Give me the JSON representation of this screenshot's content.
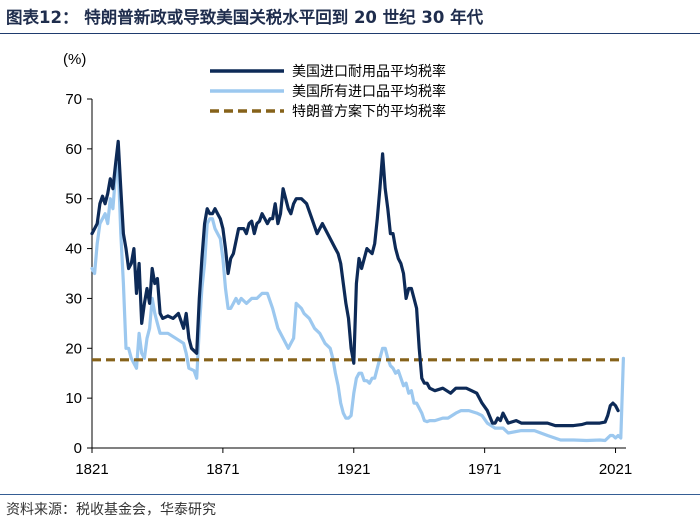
{
  "title": "图表12：  特朗普新政或导致美国关税水平回到 20 世纪 30 年代",
  "source": "资料来源：税收基金会，华泰研究",
  "chart_data": {
    "type": "line",
    "ylabel": "(%)",
    "xlim": [
      1821,
      2025
    ],
    "ylim": [
      0,
      70
    ],
    "xticks": [
      1821,
      1871,
      1921,
      1971,
      2021
    ],
    "yticks": [
      0,
      10,
      20,
      30,
      40,
      50,
      60,
      70
    ],
    "grid": false,
    "legend_position": "top-right",
    "colors": {
      "dutiable": "#0d2a57",
      "all": "#9cc8ef",
      "trump": "#86621a"
    },
    "series": [
      {
        "name": "美国进口耐用品平均税率",
        "key": "dutiable",
        "points": [
          [
            1821,
            43
          ],
          [
            1823,
            45
          ],
          [
            1824,
            49
          ],
          [
            1825,
            50.5
          ],
          [
            1826,
            49
          ],
          [
            1827,
            51
          ],
          [
            1828,
            54
          ],
          [
            1829,
            52
          ],
          [
            1830,
            57
          ],
          [
            1831,
            61.5
          ],
          [
            1832,
            52
          ],
          [
            1833,
            43
          ],
          [
            1834,
            40
          ],
          [
            1835,
            36
          ],
          [
            1836,
            37
          ],
          [
            1837,
            40
          ],
          [
            1838,
            31
          ],
          [
            1839,
            37
          ],
          [
            1840,
            25
          ],
          [
            1841,
            29
          ],
          [
            1842,
            32
          ],
          [
            1843,
            29
          ],
          [
            1844,
            36
          ],
          [
            1845,
            33
          ],
          [
            1846,
            34
          ],
          [
            1847,
            27
          ],
          [
            1848,
            26
          ],
          [
            1850,
            26.5
          ],
          [
            1852,
            26
          ],
          [
            1854,
            27
          ],
          [
            1856,
            24
          ],
          [
            1857,
            27
          ],
          [
            1858,
            22
          ],
          [
            1859,
            20
          ],
          [
            1860,
            19.5
          ],
          [
            1861,
            19
          ],
          [
            1862,
            30
          ],
          [
            1863,
            38
          ],
          [
            1864,
            45
          ],
          [
            1865,
            48
          ],
          [
            1866,
            47
          ],
          [
            1867,
            47
          ],
          [
            1868,
            48
          ],
          [
            1869,
            47
          ],
          [
            1870,
            46
          ],
          [
            1871,
            44
          ],
          [
            1872,
            40
          ],
          [
            1873,
            35
          ],
          [
            1874,
            38
          ],
          [
            1875,
            39
          ],
          [
            1877,
            44
          ],
          [
            1878,
            44
          ],
          [
            1879,
            44
          ],
          [
            1880,
            43
          ],
          [
            1881,
            45
          ],
          [
            1882,
            45.5
          ],
          [
            1883,
            43
          ],
          [
            1884,
            45
          ],
          [
            1885,
            45.5
          ],
          [
            1886,
            47
          ],
          [
            1887,
            46
          ],
          [
            1888,
            45
          ],
          [
            1889,
            46
          ],
          [
            1890,
            46
          ],
          [
            1891,
            49
          ],
          [
            1892,
            45
          ],
          [
            1893,
            47
          ],
          [
            1894,
            52
          ],
          [
            1895,
            50
          ],
          [
            1896,
            48
          ],
          [
            1897,
            47
          ],
          [
            1898,
            49
          ],
          [
            1899,
            50
          ],
          [
            1901,
            50
          ],
          [
            1903,
            49
          ],
          [
            1905,
            46
          ],
          [
            1907,
            43
          ],
          [
            1909,
            45
          ],
          [
            1911,
            43
          ],
          [
            1913,
            41
          ],
          [
            1914,
            40
          ],
          [
            1915,
            39
          ],
          [
            1916,
            37
          ],
          [
            1917,
            33
          ],
          [
            1918,
            29
          ],
          [
            1919,
            26
          ],
          [
            1920,
            20
          ],
          [
            1921,
            17
          ],
          [
            1922,
            33
          ],
          [
            1923,
            38
          ],
          [
            1924,
            36
          ],
          [
            1926,
            40
          ],
          [
            1928,
            39
          ],
          [
            1929,
            41
          ],
          [
            1930,
            46
          ],
          [
            1931,
            52
          ],
          [
            1932,
            59
          ],
          [
            1933,
            52
          ],
          [
            1934,
            48
          ],
          [
            1935,
            43
          ],
          [
            1936,
            43
          ],
          [
            1937,
            40
          ],
          [
            1938,
            38
          ],
          [
            1939,
            37
          ],
          [
            1940,
            35
          ],
          [
            1941,
            30
          ],
          [
            1942,
            32
          ],
          [
            1943,
            32
          ],
          [
            1944,
            30
          ],
          [
            1945,
            28
          ],
          [
            1946,
            20
          ],
          [
            1947,
            14
          ],
          [
            1948,
            13
          ],
          [
            1949,
            13
          ],
          [
            1950,
            12
          ],
          [
            1952,
            11.5
          ],
          [
            1955,
            12
          ],
          [
            1958,
            11
          ],
          [
            1960,
            12
          ],
          [
            1962,
            12
          ],
          [
            1964,
            12
          ],
          [
            1966,
            11.5
          ],
          [
            1968,
            11
          ],
          [
            1970,
            9
          ],
          [
            1972,
            7.5
          ],
          [
            1974,
            5
          ],
          [
            1975,
            5
          ],
          [
            1976,
            6
          ],
          [
            1977,
            5.5
          ],
          [
            1978,
            7
          ],
          [
            1979,
            6
          ],
          [
            1980,
            5
          ],
          [
            1983,
            5.5
          ],
          [
            1985,
            5
          ],
          [
            1990,
            5
          ],
          [
            1995,
            5
          ],
          [
            1998,
            4.5
          ],
          [
            2000,
            4.5
          ],
          [
            2003,
            4.5
          ],
          [
            2005,
            4.5
          ],
          [
            2008,
            4.7
          ],
          [
            2010,
            5
          ],
          [
            2012,
            5
          ],
          [
            2015,
            5
          ],
          [
            2017,
            5.2
          ],
          [
            2018,
            6.5
          ],
          [
            2019,
            8.5
          ],
          [
            2020,
            9
          ],
          [
            2021,
            8.5
          ],
          [
            2022,
            7.5
          ]
        ]
      },
      {
        "name": "美国所有进口品平均税率",
        "key": "all",
        "points": [
          [
            1821,
            36
          ],
          [
            1822,
            35
          ],
          [
            1823,
            41
          ],
          [
            1824,
            45
          ],
          [
            1825,
            46
          ],
          [
            1826,
            47
          ],
          [
            1827,
            45
          ],
          [
            1828,
            50
          ],
          [
            1829,
            48
          ],
          [
            1830,
            55
          ],
          [
            1831,
            57
          ],
          [
            1832,
            43
          ],
          [
            1833,
            33
          ],
          [
            1834,
            20
          ],
          [
            1835,
            20
          ],
          [
            1836,
            18
          ],
          [
            1837,
            17
          ],
          [
            1838,
            16
          ],
          [
            1839,
            23
          ],
          [
            1840,
            19
          ],
          [
            1841,
            18
          ],
          [
            1842,
            22
          ],
          [
            1843,
            24
          ],
          [
            1844,
            30
          ],
          [
            1845,
            27
          ],
          [
            1846,
            25
          ],
          [
            1847,
            23
          ],
          [
            1850,
            23
          ],
          [
            1853,
            22
          ],
          [
            1856,
            21
          ],
          [
            1857,
            19
          ],
          [
            1858,
            16
          ],
          [
            1860,
            15.5
          ],
          [
            1861,
            14
          ],
          [
            1862,
            24
          ],
          [
            1863,
            32
          ],
          [
            1864,
            37
          ],
          [
            1865,
            45
          ],
          [
            1866,
            46
          ],
          [
            1867,
            46
          ],
          [
            1868,
            44
          ],
          [
            1869,
            43
          ],
          [
            1870,
            42
          ],
          [
            1871,
            38
          ],
          [
            1872,
            32
          ],
          [
            1873,
            28
          ],
          [
            1874,
            28
          ],
          [
            1875,
            29
          ],
          [
            1876,
            30
          ],
          [
            1877,
            29
          ],
          [
            1878,
            30
          ],
          [
            1880,
            29
          ],
          [
            1882,
            30
          ],
          [
            1884,
            30
          ],
          [
            1886,
            31
          ],
          [
            1888,
            31
          ],
          [
            1890,
            28
          ],
          [
            1892,
            24
          ],
          [
            1894,
            22
          ],
          [
            1896,
            20
          ],
          [
            1897,
            21
          ],
          [
            1898,
            22
          ],
          [
            1899,
            29
          ],
          [
            1900,
            28.5
          ],
          [
            1901,
            28
          ],
          [
            1902,
            27
          ],
          [
            1904,
            26
          ],
          [
            1906,
            24
          ],
          [
            1908,
            23
          ],
          [
            1910,
            21
          ],
          [
            1912,
            20
          ],
          [
            1913,
            18
          ],
          [
            1914,
            15
          ],
          [
            1915,
            12.5
          ],
          [
            1916,
            9
          ],
          [
            1917,
            7
          ],
          [
            1918,
            6
          ],
          [
            1919,
            6
          ],
          [
            1920,
            6.5
          ],
          [
            1921,
            11
          ],
          [
            1922,
            14
          ],
          [
            1923,
            15
          ],
          [
            1924,
            15
          ],
          [
            1925,
            13.5
          ],
          [
            1926,
            13.5
          ],
          [
            1927,
            13
          ],
          [
            1928,
            14
          ],
          [
            1929,
            14
          ],
          [
            1930,
            16
          ],
          [
            1931,
            18
          ],
          [
            1932,
            20
          ],
          [
            1933,
            20
          ],
          [
            1934,
            18
          ],
          [
            1935,
            16.5
          ],
          [
            1936,
            16
          ],
          [
            1937,
            15
          ],
          [
            1938,
            15.5
          ],
          [
            1939,
            14
          ],
          [
            1940,
            12.5
          ],
          [
            1941,
            13
          ],
          [
            1942,
            11
          ],
          [
            1943,
            11.5
          ],
          [
            1944,
            9
          ],
          [
            1945,
            9
          ],
          [
            1946,
            8
          ],
          [
            1947,
            7
          ],
          [
            1948,
            5.5
          ],
          [
            1949,
            5.3
          ],
          [
            1950,
            5.5
          ],
          [
            1952,
            5.5
          ],
          [
            1955,
            6
          ],
          [
            1957,
            6
          ],
          [
            1960,
            7
          ],
          [
            1962,
            7.5
          ],
          [
            1965,
            7.5
          ],
          [
            1968,
            7
          ],
          [
            1970,
            6.5
          ],
          [
            1972,
            5
          ],
          [
            1975,
            4
          ],
          [
            1978,
            4
          ],
          [
            1980,
            3
          ],
          [
            1985,
            3.5
          ],
          [
            1990,
            3.5
          ],
          [
            1995,
            2.5
          ],
          [
            2000,
            1.6
          ],
          [
            2005,
            1.6
          ],
          [
            2010,
            1.5
          ],
          [
            2015,
            1.6
          ],
          [
            2017,
            1.5
          ],
          [
            2018,
            2
          ],
          [
            2019,
            2.5
          ],
          [
            2020,
            2.5
          ],
          [
            2021,
            2
          ],
          [
            2022,
            2.5
          ],
          [
            2023,
            2
          ],
          [
            2024,
            18
          ]
        ]
      },
      {
        "name": "特朗普方案下的平均税率",
        "key": "trump",
        "points": [
          [
            1821,
            17.7
          ],
          [
            2024,
            17.7
          ]
        ]
      }
    ]
  }
}
